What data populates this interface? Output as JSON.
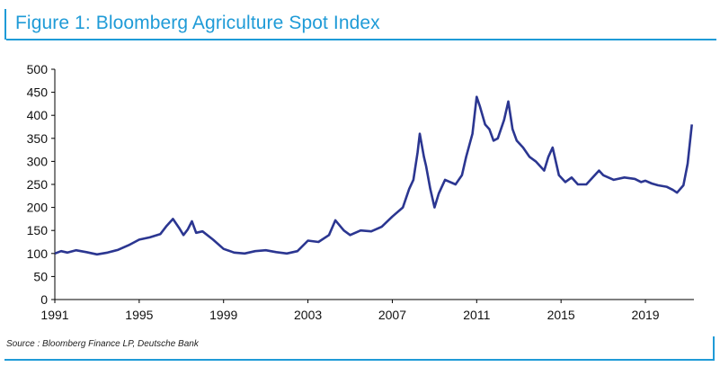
{
  "figure": {
    "title": "Figure 1: Bloomberg Agriculture Spot Index",
    "source": "Source : Bloomberg Finance LP, Deutsche Bank",
    "accent_color": "#1f9bd7",
    "line_color": "#2b3691"
  },
  "chart_data": {
    "type": "line",
    "title": "Figure 1: Bloomberg Agriculture Spot Index",
    "xlabel": "",
    "ylabel": "",
    "xlim": [
      1991,
      2021.3
    ],
    "ylim": [
      0,
      500
    ],
    "x_ticks": [
      1991,
      1995,
      1999,
      2003,
      2007,
      2011,
      2015,
      2019
    ],
    "y_ticks": [
      0,
      50,
      100,
      150,
      200,
      250,
      300,
      350,
      400,
      450,
      500
    ],
    "grid": false,
    "legend": "none",
    "series": [
      {
        "x": [
          1991.0,
          1991.3,
          1991.6,
          1992.0,
          1992.5,
          1993.0,
          1993.5,
          1994.0,
          1994.5,
          1995.0,
          1995.5,
          1996.0,
          1996.3,
          1996.6,
          1996.9,
          1997.1,
          1997.3,
          1997.5,
          1997.7,
          1998.0,
          1998.5,
          1999.0,
          1999.5,
          2000.0,
          2000.5,
          2001.0,
          2001.5,
          2002.0,
          2002.5,
          2003.0,
          2003.5,
          2004.0,
          2004.3,
          2004.7,
          2005.0,
          2005.5,
          2006.0,
          2006.5,
          2007.0,
          2007.5,
          2007.8,
          2008.0,
          2008.2,
          2008.3,
          2008.5,
          2008.6,
          2008.8,
          2009.0,
          2009.2,
          2009.5,
          2010.0,
          2010.3,
          2010.5,
          2010.8,
          2011.0,
          2011.15,
          2011.4,
          2011.6,
          2011.8,
          2012.0,
          2012.3,
          2012.5,
          2012.7,
          2012.9,
          2013.2,
          2013.5,
          2013.8,
          2014.0,
          2014.2,
          2014.4,
          2014.6,
          2014.9,
          2015.2,
          2015.5,
          2015.8,
          2016.2,
          2016.5,
          2016.8,
          2017.0,
          2017.5,
          2018.0,
          2018.5,
          2018.8,
          2019.0,
          2019.3,
          2019.6,
          2020.0,
          2020.3,
          2020.5,
          2020.8,
          2021.0,
          2021.2
        ],
        "y": [
          100,
          105,
          102,
          107,
          103,
          98,
          102,
          108,
          118,
          130,
          135,
          142,
          160,
          175,
          155,
          140,
          152,
          170,
          145,
          148,
          130,
          110,
          102,
          100,
          105,
          107,
          103,
          100,
          105,
          128,
          125,
          140,
          172,
          150,
          140,
          150,
          148,
          158,
          180,
          200,
          240,
          260,
          320,
          360,
          310,
          290,
          240,
          200,
          230,
          260,
          250,
          270,
          310,
          360,
          440,
          420,
          380,
          370,
          345,
          350,
          390,
          430,
          370,
          345,
          330,
          310,
          300,
          290,
          280,
          310,
          330,
          270,
          255,
          265,
          250,
          250,
          265,
          280,
          270,
          260,
          265,
          262,
          255,
          258,
          252,
          248,
          245,
          238,
          232,
          248,
          295,
          380
        ]
      }
    ]
  }
}
